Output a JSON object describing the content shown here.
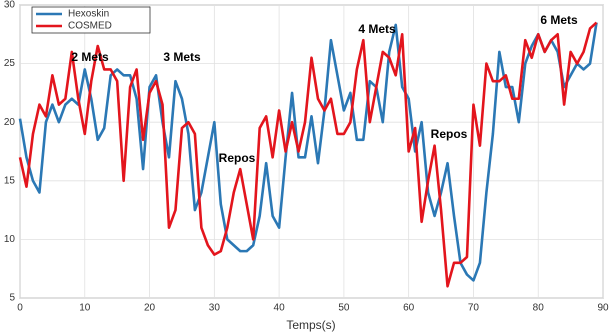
{
  "chart_data": {
    "type": "line",
    "x": [
      0,
      1,
      2,
      3,
      4,
      5,
      6,
      7,
      8,
      9,
      10,
      11,
      12,
      13,
      14,
      15,
      16,
      17,
      18,
      19,
      20,
      21,
      22,
      23,
      24,
      25,
      26,
      27,
      28,
      29,
      30,
      31,
      32,
      33,
      34,
      35,
      36,
      37,
      38,
      39,
      40,
      41,
      42,
      43,
      44,
      45,
      46,
      47,
      48,
      49,
      50,
      51,
      52,
      53,
      54,
      55,
      56,
      57,
      58,
      59,
      60,
      61,
      62,
      63,
      64,
      65,
      66,
      67,
      68,
      69,
      70,
      71,
      72,
      73,
      74,
      75,
      76,
      77,
      78,
      79,
      80,
      81,
      82,
      83,
      84,
      85,
      86,
      87,
      88,
      89
    ],
    "series": [
      {
        "name": "Hexoskin",
        "color": "#2b78b5",
        "values": [
          20.3,
          17,
          15,
          14,
          20,
          21.5,
          20,
          21.5,
          22,
          21.5,
          24.5,
          22,
          18.5,
          19.5,
          24,
          24.5,
          24,
          24,
          22,
          16,
          23,
          24,
          20,
          17,
          23.5,
          22,
          19,
          12.5,
          14,
          17,
          20,
          13,
          10,
          9.5,
          9,
          9,
          9.5,
          12,
          16.5,
          12,
          11,
          17,
          22.5,
          17,
          17,
          20.5,
          16.5,
          21,
          27,
          24,
          21,
          22.5,
          18.5,
          18.5,
          23.5,
          23,
          20,
          26,
          28.3,
          23,
          22,
          17.5,
          20,
          14,
          12,
          14,
          16.5,
          12,
          8,
          7,
          6.5,
          8,
          14,
          19,
          26,
          23,
          23,
          20,
          25,
          26.5,
          27.5,
          26,
          27,
          26,
          23,
          24,
          25,
          24.5,
          25,
          28.5
        ]
      },
      {
        "name": "COSMED",
        "color": "#e3151d",
        "values": [
          17,
          14.5,
          19,
          21.5,
          20.5,
          24,
          21.5,
          22,
          26,
          22,
          19,
          23.5,
          26.5,
          24.5,
          24.5,
          23.5,
          15,
          23,
          24.5,
          18.5,
          22.5,
          23.5,
          21.5,
          11,
          12.5,
          19.5,
          20,
          19,
          11,
          9.5,
          8.7,
          9,
          11,
          14,
          16,
          13,
          10,
          19.5,
          20.5,
          17,
          21,
          17.5,
          20,
          17.5,
          20,
          25.5,
          22,
          21,
          22,
          19,
          19,
          20,
          24.5,
          27,
          20,
          23,
          26,
          25.5,
          24,
          27.5,
          17.5,
          19.5,
          11.5,
          15,
          18,
          12.5,
          6,
          8,
          8,
          8.5,
          21.5,
          18,
          25,
          23.5,
          23.5,
          24,
          22,
          22,
          27,
          25.5,
          27.5,
          26,
          27,
          27.5,
          21.5,
          26,
          25,
          26,
          28,
          28.5
        ]
      }
    ],
    "xlabel": "Temps(s)",
    "xlim": [
      0,
      90
    ],
    "xticks": [
      0,
      10,
      20,
      30,
      40,
      50,
      60,
      70,
      80,
      90
    ],
    "ylim": [
      5,
      30
    ],
    "yticks": [
      5,
      10,
      15,
      20,
      25,
      30
    ],
    "grid": true,
    "legend": "upper left",
    "annotations": [
      "2 Mets",
      "3 Mets",
      "Repos",
      "4 Mets",
      "Repos",
      "6 Mets"
    ]
  }
}
